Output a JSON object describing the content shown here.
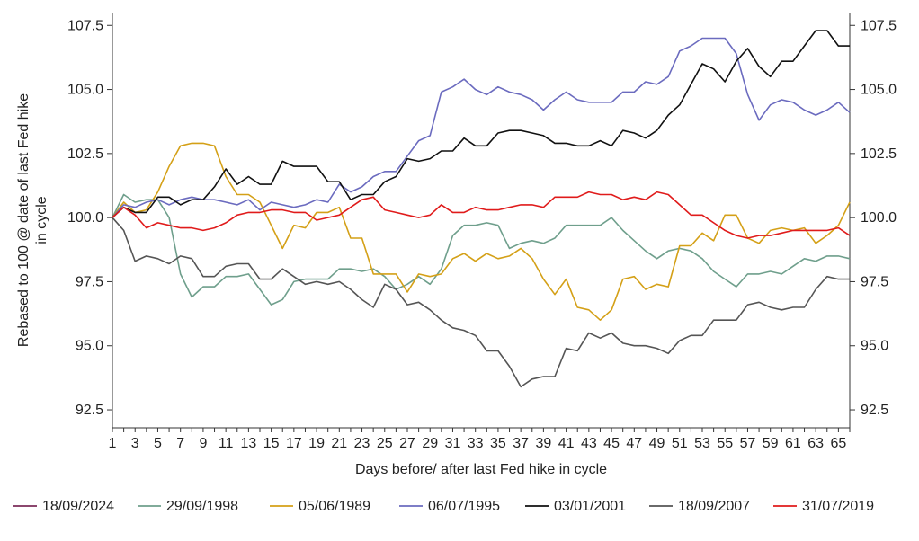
{
  "chart_data": {
    "type": "line",
    "xlabel": "Days before/ after last Fed hike in cycle",
    "ylabel": "Rebased to 100 @ date of last Fed hike in cycle",
    "xlim": [
      1,
      66
    ],
    "ylim": [
      92.5,
      107.5
    ],
    "x_ticks": [
      1,
      3,
      5,
      7,
      9,
      11,
      13,
      15,
      17,
      19,
      21,
      23,
      25,
      27,
      29,
      31,
      33,
      35,
      37,
      39,
      41,
      43,
      45,
      47,
      49,
      51,
      53,
      55,
      57,
      59,
      61,
      63,
      65
    ],
    "y_ticks": [
      92.5,
      95.0,
      97.5,
      100.0,
      102.5,
      105.0,
      107.5
    ],
    "y_tick_labels": [
      "92.5",
      "95.0",
      "97.5",
      "100.0",
      "102.5",
      "105.0",
      "107.5"
    ],
    "dual_y_axis": true,
    "grid": false,
    "legend_position": "bottom",
    "series": [
      {
        "name": "18/09/2024",
        "color": "#7b2d5a",
        "values": []
      },
      {
        "name": "29/09/1998",
        "color": "#6f9f8c",
        "values": [
          100.0,
          100.9,
          100.6,
          100.7,
          100.7,
          100.0,
          97.8,
          96.9,
          97.3,
          97.3,
          97.7,
          97.7,
          97.8,
          97.2,
          96.6,
          96.8,
          97.5,
          97.6,
          97.6,
          97.6,
          98.0,
          98.0,
          97.9,
          98.0,
          97.7,
          97.2,
          97.4,
          97.7,
          97.4,
          98.0,
          99.3,
          99.7,
          99.7,
          99.8,
          99.7,
          98.8,
          99.0,
          99.1,
          99.0,
          99.2,
          99.7,
          99.7,
          99.7,
          99.7,
          100.0,
          99.5,
          99.1,
          98.7,
          98.4,
          98.7,
          98.8,
          98.7,
          98.4,
          97.9,
          97.6,
          97.3,
          97.8,
          97.8,
          97.9,
          97.8,
          98.1,
          98.4,
          98.3,
          98.5,
          98.5,
          98.4
        ]
      },
      {
        "name": "05/06/1989",
        "color": "#d4a017",
        "values": [
          100.0,
          100.6,
          100.2,
          100.3,
          101.0,
          102.0,
          102.8,
          102.9,
          102.9,
          102.8,
          101.6,
          100.9,
          100.9,
          100.6,
          99.7,
          98.8,
          99.7,
          99.6,
          100.2,
          100.2,
          100.4,
          99.2,
          99.2,
          97.8,
          97.8,
          97.8,
          97.1,
          97.8,
          97.7,
          97.8,
          98.4,
          98.6,
          98.3,
          98.6,
          98.4,
          98.5,
          98.8,
          98.4,
          97.6,
          97.0,
          97.6,
          96.5,
          96.4,
          96.0,
          96.4,
          97.6,
          97.7,
          97.2,
          97.4,
          97.3,
          98.9,
          98.9,
          99.4,
          99.1,
          100.1,
          100.1,
          99.2,
          99.0,
          99.5,
          99.6,
          99.5,
          99.6,
          99.0,
          99.3,
          99.7,
          100.6
        ]
      },
      {
        "name": "06/07/1995",
        "color": "#6b6bbf",
        "values": [
          100.0,
          100.5,
          100.4,
          100.6,
          100.7,
          100.5,
          100.7,
          100.8,
          100.7,
          100.7,
          100.6,
          100.5,
          100.7,
          100.3,
          100.6,
          100.5,
          100.4,
          100.5,
          100.7,
          100.6,
          101.3,
          101.0,
          101.2,
          101.6,
          101.8,
          101.8,
          102.4,
          103.0,
          103.2,
          104.9,
          105.1,
          105.4,
          105.0,
          104.8,
          105.1,
          104.9,
          104.8,
          104.6,
          104.2,
          104.6,
          104.9,
          104.6,
          104.5,
          104.5,
          104.5,
          104.9,
          104.9,
          105.3,
          105.2,
          105.5,
          106.5,
          106.7,
          107.0,
          107.0,
          107.0,
          106.4,
          104.8,
          103.8,
          104.4,
          104.6,
          104.5,
          104.2,
          104.0,
          104.2,
          104.5,
          104.1
        ]
      },
      {
        "name": "03/01/2001",
        "color": "#111111",
        "values": [
          100.0,
          100.4,
          100.2,
          100.2,
          100.8,
          100.8,
          100.5,
          100.7,
          100.7,
          101.2,
          101.9,
          101.3,
          101.6,
          101.3,
          101.3,
          102.2,
          102.0,
          102.0,
          102.0,
          101.4,
          101.4,
          100.7,
          100.9,
          100.9,
          101.4,
          101.6,
          102.3,
          102.2,
          102.3,
          102.6,
          102.6,
          103.1,
          102.8,
          102.8,
          103.3,
          103.4,
          103.4,
          103.3,
          103.2,
          102.9,
          102.9,
          102.8,
          102.8,
          103.0,
          102.8,
          103.4,
          103.3,
          103.1,
          103.4,
          104.0,
          104.4,
          105.2,
          106.0,
          105.8,
          105.3,
          106.1,
          106.6,
          105.9,
          105.5,
          106.1,
          106.1,
          106.7,
          107.3,
          107.3,
          106.7,
          106.7
        ]
      },
      {
        "name": "18/09/2007",
        "color": "#555555",
        "values": [
          100.0,
          99.5,
          98.3,
          98.5,
          98.4,
          98.2,
          98.5,
          98.4,
          97.7,
          97.7,
          98.1,
          98.2,
          98.2,
          97.6,
          97.6,
          98.0,
          97.7,
          97.4,
          97.5,
          97.4,
          97.5,
          97.2,
          96.8,
          96.5,
          97.4,
          97.2,
          96.6,
          96.7,
          96.4,
          96.0,
          95.7,
          95.6,
          95.4,
          94.8,
          94.8,
          94.2,
          93.4,
          93.7,
          93.8,
          93.8,
          94.9,
          94.8,
          95.5,
          95.3,
          95.5,
          95.1,
          95.0,
          95.0,
          94.9,
          94.7,
          95.2,
          95.4,
          95.4,
          96.0,
          96.0,
          96.0,
          96.6,
          96.7,
          96.5,
          96.4,
          96.5,
          96.5,
          97.2,
          97.7,
          97.6,
          97.6
        ]
      },
      {
        "name": "31/07/2019",
        "color": "#e01b1b",
        "values": [
          100.0,
          100.4,
          100.1,
          99.6,
          99.8,
          99.7,
          99.6,
          99.6,
          99.5,
          99.6,
          99.8,
          100.1,
          100.2,
          100.2,
          100.3,
          100.3,
          100.2,
          100.2,
          99.9,
          100.0,
          100.1,
          100.4,
          100.7,
          100.8,
          100.3,
          100.2,
          100.1,
          100.0,
          100.1,
          100.5,
          100.2,
          100.2,
          100.4,
          100.3,
          100.3,
          100.4,
          100.5,
          100.5,
          100.4,
          100.8,
          100.8,
          100.8,
          101.0,
          100.9,
          100.9,
          100.7,
          100.8,
          100.7,
          101.0,
          100.9,
          100.5,
          100.1,
          100.1,
          99.8,
          99.5,
          99.3,
          99.2,
          99.3,
          99.3,
          99.4,
          99.5,
          99.5,
          99.5,
          99.5,
          99.6,
          99.3
        ]
      }
    ]
  }
}
